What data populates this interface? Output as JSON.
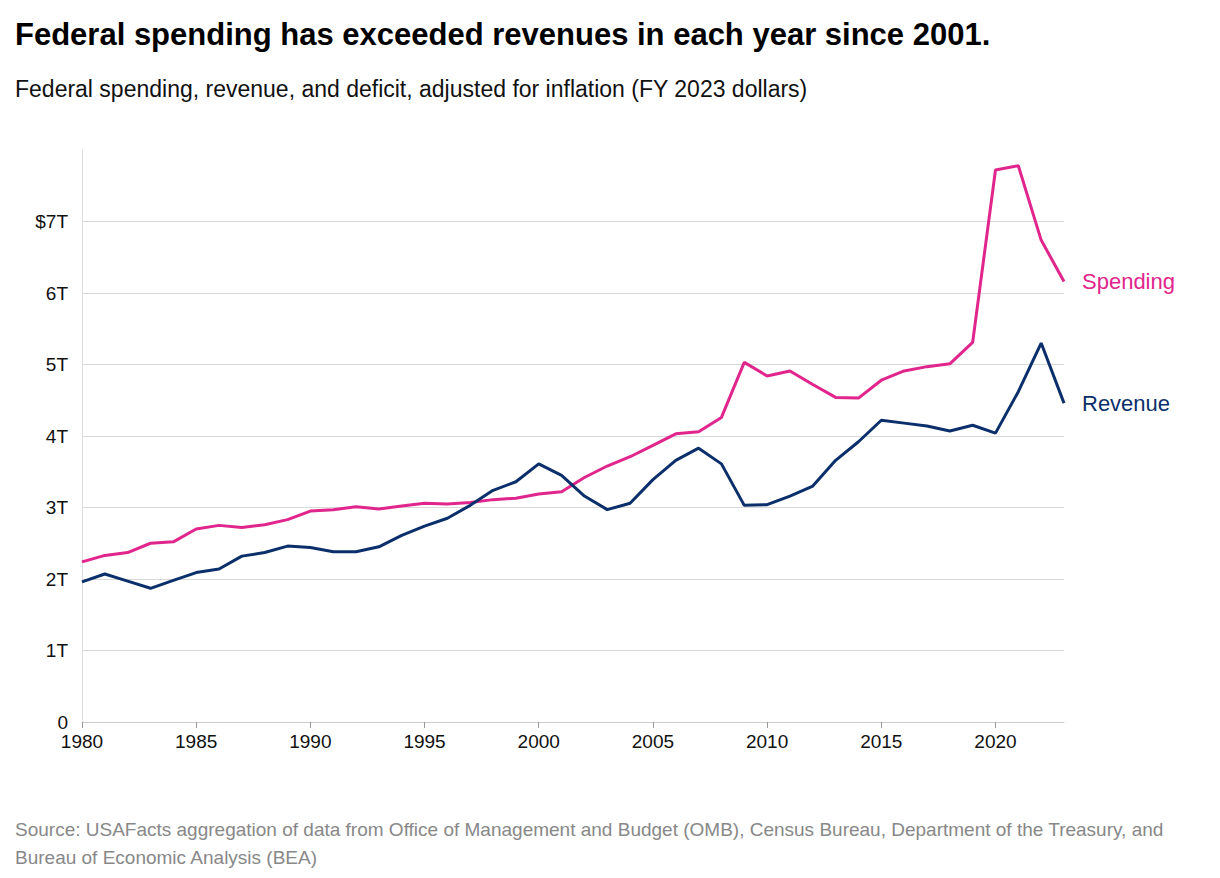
{
  "chart_data": {
    "type": "line",
    "title": "Federal spending has exceeded revenues in each year since 2001.",
    "subtitle": "Federal spending, revenue, and deficit, adjusted for inflation (FY 2023 dollars)",
    "source": "Source: USAFacts aggregation of data from Office of Management and Budget (OMB), Census Bureau, Department of the Treasury, and Bureau of Economic Analysis (BEA)",
    "x": [
      1980,
      1981,
      1982,
      1983,
      1984,
      1985,
      1986,
      1987,
      1988,
      1989,
      1990,
      1991,
      1992,
      1993,
      1994,
      1995,
      1996,
      1997,
      1998,
      1999,
      2000,
      2001,
      2002,
      2003,
      2004,
      2005,
      2006,
      2007,
      2008,
      2009,
      2010,
      2011,
      2012,
      2013,
      2014,
      2015,
      2016,
      2017,
      2018,
      2019,
      2020,
      2021,
      2022,
      2023
    ],
    "series": [
      {
        "name": "Spending",
        "color": "#e0258c",
        "values": [
          2.24,
          2.33,
          2.37,
          2.5,
          2.52,
          2.7,
          2.75,
          2.72,
          2.76,
          2.83,
          2.95,
          2.97,
          3.01,
          2.98,
          3.02,
          3.06,
          3.05,
          3.07,
          3.11,
          3.13,
          3.19,
          3.22,
          3.42,
          3.58,
          3.71,
          3.87,
          4.03,
          4.06,
          4.26,
          5.03,
          4.84,
          4.91,
          4.72,
          4.54,
          4.53,
          4.78,
          4.91,
          4.97,
          5.01,
          5.31,
          7.72,
          7.78,
          6.74,
          6.16
        ]
      },
      {
        "name": "Revenue",
        "color": "#0b2f6b",
        "values": [
          1.96,
          2.07,
          1.97,
          1.87,
          1.98,
          2.09,
          2.14,
          2.32,
          2.37,
          2.46,
          2.44,
          2.38,
          2.38,
          2.45,
          2.61,
          2.74,
          2.85,
          3.03,
          3.24,
          3.36,
          3.61,
          3.45,
          3.16,
          2.97,
          3.06,
          3.39,
          3.66,
          3.83,
          3.61,
          3.03,
          3.04,
          3.16,
          3.3,
          3.66,
          3.92,
          4.22,
          4.18,
          4.14,
          4.07,
          4.15,
          4.04,
          4.62,
          5.3,
          4.46
        ]
      }
    ],
    "xlim": [
      1980,
      2023
    ],
    "xticks": [
      1980,
      1985,
      1990,
      1995,
      2000,
      2005,
      2010,
      2015,
      2020
    ],
    "ylim": [
      0,
      8
    ],
    "yticks": [
      0,
      {
        "value": 1,
        "label": "1T"
      },
      {
        "value": 2,
        "label": "2T"
      },
      {
        "value": 3,
        "label": "3T"
      },
      {
        "value": 4,
        "label": "4T"
      },
      {
        "value": 5,
        "label": "5T"
      },
      {
        "value": 6,
        "label": "6T"
      },
      {
        "value": 7,
        "label": "$7T"
      }
    ],
    "grid": true
  }
}
